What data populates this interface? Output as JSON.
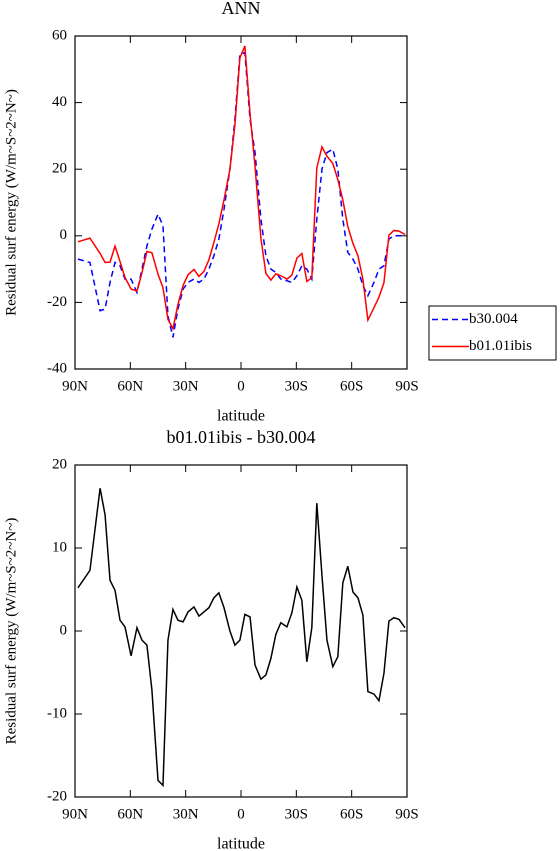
{
  "chart_data": [
    {
      "type": "line",
      "title": "ANN",
      "xlabel": "latitude",
      "ylabel": "Residual surf energy (W/m~S~2~N~)",
      "x": [
        88.4,
        81.9,
        76.4,
        73.7,
        71.0,
        68.3,
        65.6,
        62.9,
        59.6,
        56.4,
        53.7,
        51.0,
        48.3,
        45.0,
        42.3,
        39.6,
        36.9,
        34.2,
        31.4,
        28.7,
        25.5,
        22.8,
        20.1,
        17.4,
        14.7,
        12.0,
        9.2,
        6.0,
        3.3,
        0.6,
        -2.1,
        -4.9,
        -7.6,
        -10.8,
        -13.5,
        -16.2,
        -18.9,
        -21.6,
        -24.9,
        -27.6,
        -30.3,
        -33.0,
        -35.7,
        -38.4,
        -41.1,
        -43.9,
        -46.6,
        -49.8,
        -52.5,
        -55.2,
        -57.9,
        -60.7,
        -63.4,
        -66.1,
        -68.8,
        -72.1,
        -74.8,
        -77.5,
        -80.2,
        -82.9,
        -85.7,
        -88.9
      ],
      "series": [
        {
          "name": "b30.004",
          "color": "#0000ff",
          "line_style": "dashed",
          "values": [
            -7,
            -8,
            -22.5,
            -22,
            -14,
            -8,
            -9,
            -13,
            -13,
            -17,
            -10,
            -3,
            2,
            6.5,
            3,
            -24,
            -30.5,
            -22,
            -16,
            -14,
            -13,
            -14,
            -13,
            -10,
            -6,
            -1,
            8,
            20,
            35,
            54.5,
            55,
            35,
            25,
            5,
            -6,
            -10,
            -11,
            -13,
            -13.5,
            -14,
            -12,
            -9,
            -10,
            -13,
            5,
            20,
            25,
            26,
            20,
            5,
            -5,
            -7,
            -10,
            -15,
            -18,
            -14,
            -10,
            -9,
            -1,
            0,
            0,
            0
          ]
        },
        {
          "name": "b01.01ibis",
          "color": "#ff0000",
          "line_style": "solid",
          "values": [
            -1.8,
            -0.7,
            -5.3,
            -8,
            -7.9,
            -3.1,
            -7.7,
            -12.5,
            -16,
            -16.6,
            -11.1,
            -4.7,
            -5.1,
            -11.5,
            -15.6,
            -25.1,
            -27.9,
            -20.7,
            -14.9,
            -11.7,
            -10.1,
            -12.2,
            -10.7,
            -7.2,
            -2,
            3.6,
            10.8,
            20,
            33.3,
            53.4,
            57,
            36.7,
            20.9,
            -0.8,
            -11.3,
            -13.3,
            -11.4,
            -12,
            -13,
            -11.8,
            -6.7,
            -5.3,
            -13.7,
            -12.6,
            20.4,
            26.7,
            23.9,
            21.7,
            16.9,
            10.8,
            2.8,
            -2.3,
            -6,
            -13.1,
            -25.3,
            -21.6,
            -18.4,
            -14.1,
            0.2,
            1.6,
            1.4,
            0.4
          ]
        }
      ],
      "xlim": [
        90,
        -90
      ],
      "xticks": [
        {
          "value": 90,
          "label": "90N"
        },
        {
          "value": 60,
          "label": "60N"
        },
        {
          "value": 30,
          "label": "30N"
        },
        0,
        {
          "value": -30,
          "label": "30S"
        },
        {
          "value": -60,
          "label": "60S"
        },
        {
          "value": -90,
          "label": "90S"
        }
      ],
      "ylim": [
        -40,
        60
      ],
      "yticks": [
        -40,
        -20,
        0,
        20,
        40,
        60
      ],
      "legend": "outside right"
    },
    {
      "type": "line",
      "title": "b01.01ibis - b30.004",
      "xlabel": "latitude",
      "ylabel": "Residual surf energy (W/m~S~2~N~)",
      "x": [
        88.4,
        81.9,
        76.4,
        73.7,
        71.0,
        68.3,
        65.6,
        62.9,
        59.6,
        56.4,
        53.7,
        51.0,
        48.3,
        45.0,
        42.3,
        39.6,
        36.9,
        34.2,
        31.4,
        28.7,
        25.5,
        22.8,
        20.1,
        17.4,
        14.7,
        12.0,
        9.2,
        6.0,
        3.3,
        0.6,
        -2.1,
        -4.9,
        -7.6,
        -10.8,
        -13.5,
        -16.2,
        -18.9,
        -21.6,
        -24.9,
        -27.6,
        -30.3,
        -33.0,
        -35.7,
        -38.4,
        -41.1,
        -43.9,
        -46.6,
        -49.8,
        -52.5,
        -55.2,
        -57.9,
        -60.7,
        -63.4,
        -66.1,
        -68.8,
        -72.1,
        -74.8,
        -77.5,
        -80.2,
        -82.9,
        -85.7,
        -88.9
      ],
      "series": [
        {
          "color": "#000000",
          "line_style": "solid",
          "values": [
            5.2,
            7.3,
            17.2,
            14.0,
            6.1,
            4.9,
            1.3,
            0.5,
            -3.0,
            0.4,
            -1.1,
            -1.7,
            -7.1,
            -18.0,
            -18.6,
            -1.1,
            2.6,
            1.3,
            1.1,
            2.3,
            2.9,
            1.8,
            2.3,
            2.8,
            4.0,
            4.6,
            2.8,
            0,
            -1.7,
            -1.1,
            2.0,
            1.7,
            -4.1,
            -5.8,
            -5.3,
            -3.3,
            -0.4,
            1.0,
            0.5,
            2.2,
            5.3,
            3.7,
            -3.7,
            0.4,
            15.4,
            6.7,
            -1.1,
            -4.3,
            -3.1,
            5.8,
            7.8,
            4.7,
            4.0,
            1.9,
            -7.3,
            -7.6,
            -8.4,
            -5.1,
            1.2,
            1.6,
            1.4,
            0.4
          ]
        }
      ],
      "xlim": [
        90,
        -90
      ],
      "xticks": [
        {
          "value": 90,
          "label": "90N"
        },
        {
          "value": 60,
          "label": "60N"
        },
        {
          "value": 30,
          "label": "30N"
        },
        0,
        {
          "value": -30,
          "label": "30S"
        },
        {
          "value": -60,
          "label": "60S"
        },
        {
          "value": -90,
          "label": "90S"
        }
      ],
      "ylim": [
        -20,
        20
      ],
      "yticks": [
        -20,
        -10,
        0,
        10,
        20
      ]
    }
  ]
}
